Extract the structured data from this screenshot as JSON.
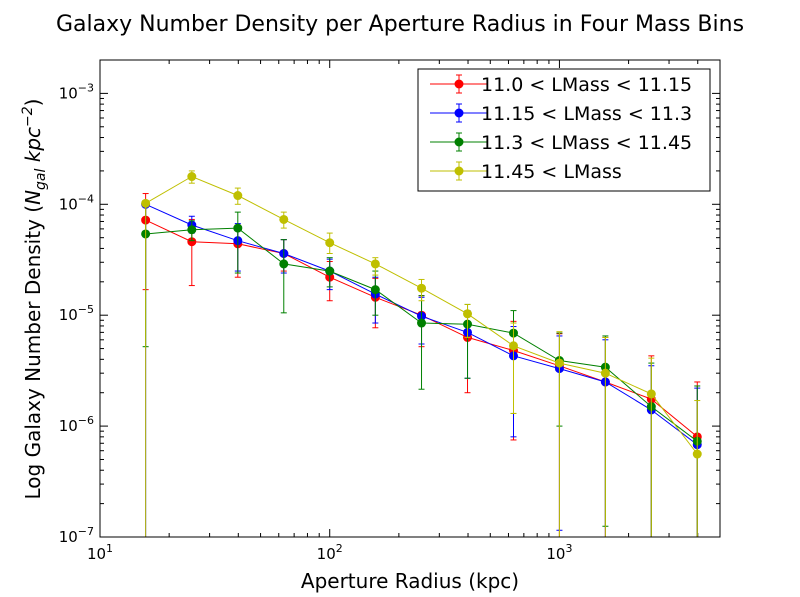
{
  "chart_data": {
    "type": "line",
    "title": "Galaxy Number Density per Aperture Radius in Four Mass Bins",
    "xlabel": "Aperture Radius (kpc)",
    "ylabel": "Log Galaxy Number Density (N_gal kpc^-2)",
    "ylabel_parts": {
      "prefix": "Log Galaxy Number Density (",
      "n": "N",
      "nsub": "gal",
      "kpc": "kpc",
      "exp": "−2",
      "suffix": ")"
    },
    "x_scale": "log",
    "y_scale": "log",
    "xlim": [
      10,
      5000
    ],
    "ylim": [
      1e-07,
      0.002
    ],
    "x_ticks": [
      {
        "value": 10,
        "base": "10",
        "exp": "1"
      },
      {
        "value": 100,
        "base": "10",
        "exp": "2"
      },
      {
        "value": 1000,
        "base": "10",
        "exp": "3"
      }
    ],
    "y_ticks": [
      {
        "value": 1e-07,
        "base": "10",
        "exp": "−7"
      },
      {
        "value": 1e-06,
        "base": "10",
        "exp": "−6"
      },
      {
        "value": 1e-05,
        "base": "10",
        "exp": "−5"
      },
      {
        "value": 0.0001,
        "base": "10",
        "exp": "−4"
      },
      {
        "value": 0.001,
        "base": "10",
        "exp": "−3"
      }
    ],
    "legend_position": "top-right",
    "grid": false,
    "x": [
      15.8,
      25.1,
      39.8,
      63.1,
      100,
      158,
      251,
      398,
      631,
      1000,
      1585,
      2512,
      3981
    ],
    "series": [
      {
        "name": "11.0 < LMass < 11.15",
        "color": "#ff0000",
        "values": [
          7.2e-05,
          4.6e-05,
          4.4e-05,
          3.6e-05,
          2.2e-05,
          1.45e-05,
          1e-05,
          6.3e-06,
          4.8e-06,
          3.5e-06,
          2.5e-06,
          1.75e-06,
          8e-07
        ],
        "err_low": [
          1.7e-05,
          1.85e-05,
          2.2e-05,
          2.5e-05,
          1.35e-05,
          7.7e-06,
          5.2e-06,
          2e-06,
          7.5e-07,
          1e-07,
          1e-07,
          1e-07,
          1e-07
        ],
        "err_high": [
          0.000125,
          7.3e-05,
          6.5e-05,
          4.8e-05,
          3.05e-05,
          2.15e-05,
          1.5e-05,
          1.05e-05,
          8.8e-06,
          6.8e-06,
          6.3e-06,
          4.3e-06,
          2.5e-06
        ]
      },
      {
        "name": "11.15 < LMass < 11.3",
        "color": "#0000ff",
        "values": [
          0.0001,
          6.5e-05,
          4.7e-05,
          3.6e-05,
          2.5e-05,
          1.55e-05,
          9.8e-06,
          7e-06,
          4.3e-06,
          3.3e-06,
          2.5e-06,
          1.4e-06,
          6.8e-07
        ],
        "err_low": [
          1e-07,
          5.5e-05,
          2.5e-05,
          2.4e-05,
          1.7e-05,
          8.5e-06,
          5.5e-06,
          2.7e-06,
          8e-07,
          1.15e-07,
          1e-07,
          1e-07,
          1e-07
        ],
        "err_high": [
          0.0001,
          7.8e-05,
          6.7e-05,
          4.8e-05,
          3.2e-05,
          2.2e-05,
          1.45e-05,
          1.1e-05,
          7.9e-06,
          6.5e-06,
          6e-06,
          3.5e-06,
          2.2e-06
        ]
      },
      {
        "name": "11.3 < LMass < 11.45",
        "color": "#008000",
        "values": [
          5.4e-05,
          5.9e-05,
          6.1e-05,
          2.9e-05,
          2.5e-05,
          1.7e-05,
          8.5e-06,
          8.3e-06,
          6.9e-06,
          3.9e-06,
          3.4e-06,
          1.5e-06,
          7.3e-07
        ],
        "err_low": [
          5.2e-06,
          4.7e-05,
          2.4e-05,
          1.05e-05,
          1.8e-05,
          1e-05,
          2.15e-06,
          2.7e-06,
          1.3e-06,
          1e-06,
          1.25e-07,
          1e-07,
          1e-07
        ],
        "err_high": [
          0.0001,
          7.1e-05,
          8.5e-05,
          4.8e-05,
          3.3e-05,
          2.5e-05,
          1.5e-05,
          1.25e-05,
          1.1e-05,
          6.9e-06,
          6.5e-06,
          3.7e-06,
          2.3e-06
        ]
      },
      {
        "name": "11.45 < LMass",
        "color": "#bfbf00",
        "values": [
          0.000102,
          0.000178,
          0.00012,
          7.3e-05,
          4.5e-05,
          2.9e-05,
          1.75e-05,
          1.03e-05,
          5.3e-06,
          3.7e-06,
          3e-06,
          1.95e-06,
          5.6e-07
        ],
        "err_low": [
          1e-07,
          0.000155,
          0.0001,
          6.1e-05,
          3.6e-05,
          2.3e-05,
          1.35e-05,
          6.3e-06,
          1.3e-06,
          1e-07,
          1e-07,
          1e-07,
          1e-07
        ],
        "err_high": [
          0.0001,
          0.0002,
          0.00014,
          8.5e-05,
          5.5e-05,
          3.3e-05,
          2.1e-05,
          1.25e-05,
          8.5e-06,
          7.1e-06,
          6.3e-06,
          4.1e-06,
          1.7e-06
        ]
      }
    ]
  }
}
